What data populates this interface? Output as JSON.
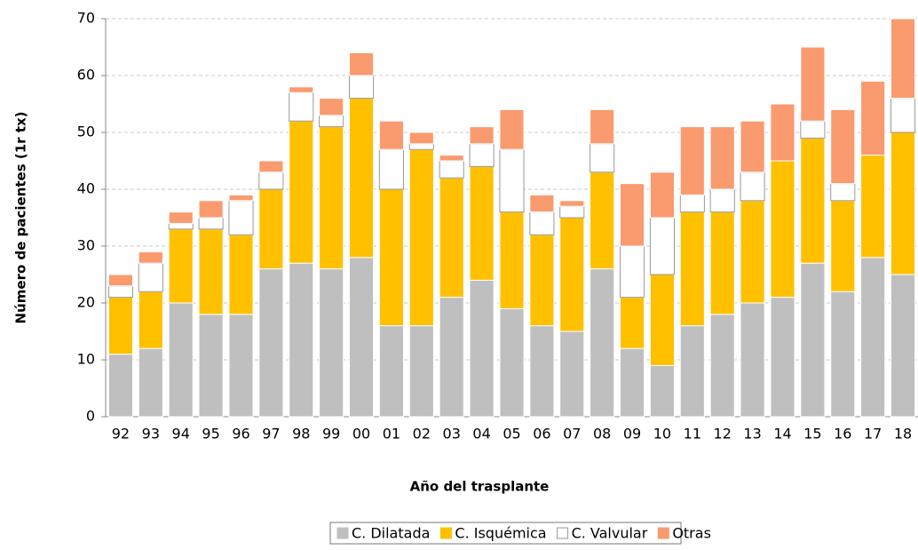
{
  "chart_data": {
    "type": "stacked_bar",
    "x_label": "Año del trasplante",
    "y_label": "Número de pacientes (1r tx)",
    "categories": [
      "92",
      "93",
      "94",
      "95",
      "96",
      "97",
      "98",
      "99",
      "00",
      "01",
      "02",
      "03",
      "04",
      "05",
      "06",
      "07",
      "08",
      "09",
      "10",
      "11",
      "12",
      "13",
      "14",
      "15",
      "16",
      "17",
      "18"
    ],
    "series": [
      {
        "name": "C. Dilatada",
        "color": "#bfbfbf",
        "values": [
          11,
          12,
          20,
          18,
          18,
          26,
          27,
          26,
          28,
          16,
          16,
          21,
          24,
          19,
          16,
          15,
          26,
          12,
          9,
          16,
          18,
          20,
          21,
          27,
          22,
          28,
          25
        ]
      },
      {
        "name": "C. Isquémica",
        "color": "#ffc000",
        "values": [
          10,
          10,
          13,
          15,
          14,
          14,
          25,
          25,
          28,
          24,
          31,
          21,
          20,
          17,
          16,
          20,
          17,
          9,
          16,
          20,
          18,
          18,
          24,
          22,
          16,
          18,
          25
        ]
      },
      {
        "name": "C. Valvular",
        "color": "#ffffff",
        "values": [
          2,
          5,
          1,
          2,
          6,
          3,
          5,
          2,
          4,
          7,
          1,
          3,
          4,
          11,
          4,
          2,
          5,
          9,
          10,
          3,
          4,
          5,
          0,
          3,
          3,
          0,
          6
        ]
      },
      {
        "name": "Otras",
        "color": "#fa9a6f",
        "values": [
          2,
          2,
          2,
          3,
          1,
          2,
          1,
          3,
          4,
          5,
          2,
          1,
          3,
          7,
          3,
          1,
          6,
          11,
          8,
          12,
          11,
          9,
          10,
          13,
          13,
          13,
          14
        ]
      }
    ],
    "ylim": [
      0,
      70
    ],
    "yticks": [
      0,
      10,
      20,
      30,
      40,
      50,
      60,
      70
    ],
    "grid": true
  }
}
